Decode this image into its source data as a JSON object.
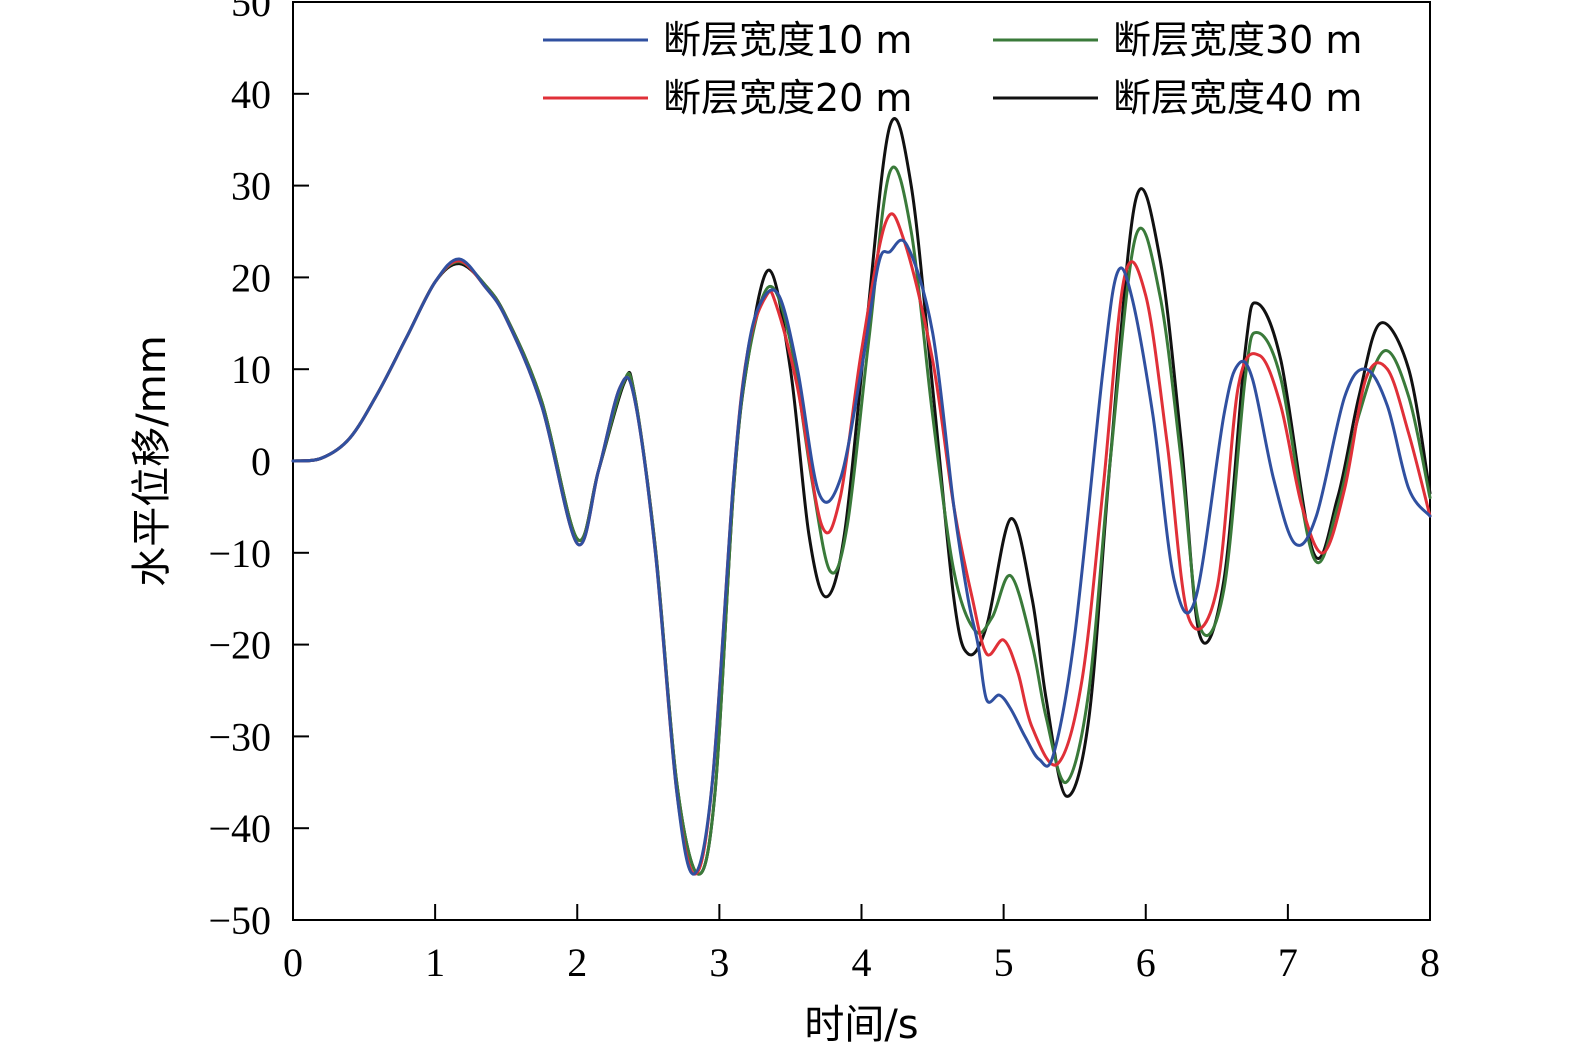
{
  "chart_data": {
    "type": "line",
    "xlabel": "时间/s",
    "ylabel": "水平位移/mm",
    "xlim": [
      0,
      8
    ],
    "ylim": [
      -50,
      50
    ],
    "xticks": [
      0,
      1,
      2,
      3,
      4,
      5,
      6,
      7,
      8
    ],
    "yticks": [
      -50,
      -40,
      -30,
      -20,
      -10,
      0,
      10,
      20,
      30,
      40,
      50
    ],
    "xtick_labels": [
      "0",
      "1",
      "2",
      "3",
      "4",
      "5",
      "6",
      "7",
      "8"
    ],
    "ytick_labels": [
      "−50",
      "−40",
      "−30",
      "−20",
      "−10",
      "0",
      "10",
      "20",
      "30",
      "40",
      "50"
    ],
    "grid": false,
    "legend_position": "top-right",
    "series": [
      {
        "name": "断层宽度10 m",
        "color": "#3050a0",
        "x": [
          0,
          0.2,
          0.4,
          0.6,
          0.8,
          1.0,
          1.17,
          1.35,
          1.5,
          1.75,
          2.0,
          2.15,
          2.3,
          2.4,
          2.55,
          2.7,
          2.82,
          2.95,
          3.1,
          3.2,
          3.3,
          3.42,
          3.55,
          3.7,
          3.85,
          4.0,
          4.12,
          4.2,
          4.32,
          4.5,
          4.65,
          4.75,
          4.82,
          4.88,
          4.97,
          5.05,
          5.15,
          5.25,
          5.35,
          5.5,
          5.7,
          5.8,
          5.9,
          6.05,
          6.2,
          6.35,
          6.55,
          6.65,
          6.75,
          6.9,
          7.05,
          7.2,
          7.4,
          7.55,
          7.7,
          7.85,
          8.0
        ],
        "values": [
          0,
          0.3,
          2.5,
          7.5,
          13.5,
          19.5,
          22.0,
          19.0,
          15.5,
          6.0,
          -9.0,
          -1.0,
          8.0,
          7.0,
          -10.0,
          -36.0,
          -45.0,
          -35.0,
          -2.0,
          12.0,
          17.5,
          18.0,
          10.0,
          -3.5,
          -2.0,
          10.0,
          21.5,
          22.8,
          23.5,
          14.0,
          -5.0,
          -15.0,
          -20.0,
          -26.0,
          -25.5,
          -27.0,
          -30.0,
          -32.5,
          -32.0,
          -19.0,
          10.0,
          20.5,
          18.0,
          5.0,
          -13.0,
          -15.0,
          5.0,
          10.5,
          9.0,
          -2.0,
          -9.0,
          -6.0,
          7.0,
          10.0,
          6.0,
          -3.0,
          -6.0
        ]
      },
      {
        "name": "断层宽度20 m",
        "color": "#e03038",
        "x": [
          0,
          0.2,
          0.4,
          0.6,
          0.8,
          1.0,
          1.17,
          1.35,
          1.5,
          1.75,
          2.0,
          2.15,
          2.3,
          2.4,
          2.55,
          2.7,
          2.83,
          2.95,
          3.1,
          3.2,
          3.33,
          3.4,
          3.55,
          3.72,
          3.85,
          4.0,
          4.17,
          4.3,
          4.5,
          4.65,
          4.78,
          4.88,
          5.0,
          5.1,
          5.2,
          5.38,
          5.55,
          5.7,
          5.85,
          6.0,
          6.15,
          6.3,
          6.5,
          6.65,
          6.8,
          6.95,
          7.1,
          7.25,
          7.4,
          7.55,
          7.7,
          7.85,
          8.0
        ],
        "values": [
          0,
          0.3,
          2.5,
          7.5,
          13.5,
          19.5,
          21.8,
          19.0,
          15.5,
          6.0,
          -9.0,
          -1.0,
          8.0,
          7.0,
          -10.0,
          -36.0,
          -45.0,
          -35.0,
          -2.0,
          12.0,
          18.0,
          17.0,
          8.0,
          -7.0,
          -4.0,
          12.0,
          26.0,
          24.0,
          11.0,
          -5.0,
          -15.0,
          -21.0,
          -19.5,
          -23.0,
          -29.0,
          -33.0,
          -24.0,
          -3.0,
          20.0,
          18.0,
          2.0,
          -17.0,
          -14.0,
          8.0,
          11.5,
          6.0,
          -5.0,
          -10.0,
          -3.0,
          9.0,
          10.0,
          3.0,
          -6.0
        ]
      },
      {
        "name": "断层宽度30 m",
        "color": "#3a7a3a",
        "x": [
          0,
          0.2,
          0.4,
          0.6,
          0.8,
          1.0,
          1.17,
          1.35,
          1.5,
          1.75,
          2.0,
          2.15,
          2.32,
          2.4,
          2.55,
          2.7,
          2.85,
          2.97,
          3.1,
          3.2,
          3.35,
          3.5,
          3.65,
          3.78,
          3.9,
          4.05,
          4.2,
          4.35,
          4.5,
          4.65,
          4.8,
          4.92,
          5.05,
          5.2,
          5.3,
          5.44,
          5.6,
          5.75,
          5.93,
          6.1,
          6.25,
          6.38,
          6.55,
          6.7,
          6.78,
          6.95,
          7.18,
          7.35,
          7.5,
          7.68,
          7.85,
          8.0
        ],
        "values": [
          0,
          0.3,
          2.5,
          7.5,
          13.5,
          19.5,
          21.7,
          19.2,
          15.7,
          6.5,
          -8.5,
          -1.0,
          8.3,
          7.5,
          -9.5,
          -35.0,
          -45.0,
          -36.0,
          -3.0,
          11.0,
          19.0,
          13.0,
          -2.0,
          -12.0,
          -7.0,
          13.0,
          31.5,
          25.0,
          5.0,
          -12.0,
          -18.5,
          -17.0,
          -12.5,
          -20.0,
          -28.0,
          -35.0,
          -25.0,
          0.0,
          24.5,
          18.0,
          0.0,
          -18.0,
          -14.0,
          9.0,
          14.0,
          9.0,
          -10.5,
          -5.0,
          5.0,
          12.0,
          7.0,
          -4.0
        ]
      },
      {
        "name": "断层宽度40 m",
        "color": "#111111",
        "x": [
          0,
          0.2,
          0.4,
          0.6,
          0.8,
          1.0,
          1.17,
          1.35,
          1.5,
          1.75,
          2.0,
          2.15,
          2.33,
          2.4,
          2.55,
          2.7,
          2.85,
          2.97,
          3.1,
          3.2,
          3.35,
          3.5,
          3.63,
          3.75,
          3.88,
          4.03,
          4.2,
          4.35,
          4.5,
          4.65,
          4.75,
          4.88,
          5.05,
          5.2,
          5.3,
          5.44,
          5.6,
          5.75,
          5.93,
          6.1,
          6.25,
          6.38,
          6.55,
          6.7,
          6.78,
          6.95,
          7.18,
          7.35,
          7.5,
          7.65,
          7.85,
          8.0
        ],
        "values": [
          0,
          0.3,
          2.5,
          7.5,
          13.5,
          19.5,
          21.5,
          19.2,
          15.7,
          6.5,
          -8.5,
          -1.0,
          8.5,
          7.5,
          -9.5,
          -35.0,
          -45.0,
          -36.0,
          -3.0,
          11.0,
          20.8,
          10.0,
          -8.0,
          -14.8,
          -8.0,
          14.0,
          36.5,
          30.0,
          8.0,
          -15.0,
          -21.0,
          -18.0,
          -6.3,
          -15.0,
          -26.0,
          -36.5,
          -28.0,
          0.0,
          28.5,
          22.0,
          2.0,
          -19.0,
          -13.0,
          12.0,
          17.2,
          11.0,
          -10.0,
          -4.0,
          7.0,
          15.0,
          10.0,
          -3.5
        ]
      }
    ]
  }
}
